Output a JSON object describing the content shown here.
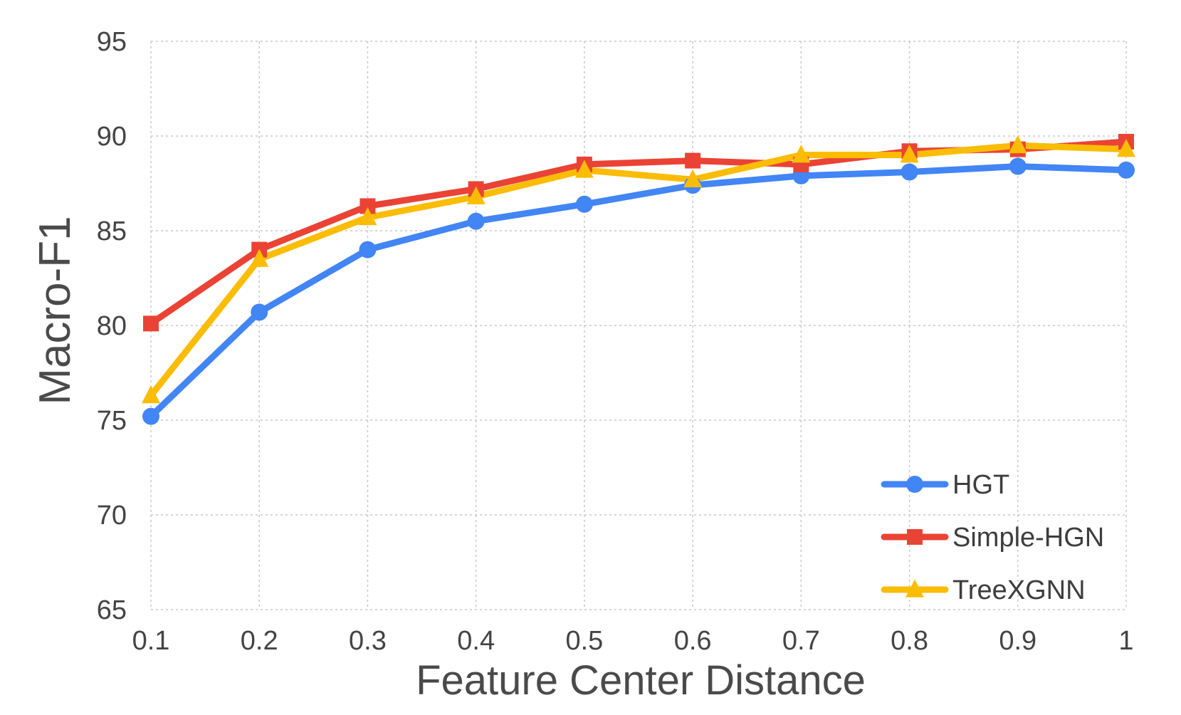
{
  "chart_data": {
    "type": "line",
    "xlabel": "Feature Center Distance",
    "ylabel": "Macro-F1",
    "x": [
      0.1,
      0.2,
      0.3,
      0.4,
      0.5,
      0.6,
      0.7,
      0.8,
      0.9,
      1.0
    ],
    "x_tick_labels": [
      "0.1",
      "0.2",
      "0.3",
      "0.4",
      "0.5",
      "0.6",
      "0.7",
      "0.8",
      "0.9",
      "1"
    ],
    "y_ticks": [
      65,
      70,
      75,
      80,
      85,
      90,
      95
    ],
    "y_tick_labels": [
      "65",
      "70",
      "75",
      "80",
      "85",
      "90",
      "95"
    ],
    "xlim": [
      0.1,
      1.0
    ],
    "ylim": [
      65,
      95
    ],
    "grid": true,
    "legend_position": "bottom-right",
    "series": [
      {
        "name": "HGT",
        "color": "#4285F4",
        "marker": "circle",
        "values": [
          75.2,
          80.7,
          84.0,
          85.5,
          86.4,
          87.4,
          87.9,
          88.1,
          88.4,
          88.2
        ]
      },
      {
        "name": "Simple-HGN",
        "color": "#EA4335",
        "marker": "square",
        "values": [
          80.1,
          84.0,
          86.3,
          87.2,
          88.5,
          88.7,
          88.5,
          89.2,
          89.3,
          89.7
        ]
      },
      {
        "name": "TreeXGNN",
        "color": "#FBBC04",
        "marker": "triangle",
        "values": [
          76.3,
          83.5,
          85.7,
          86.8,
          88.2,
          87.7,
          89.0,
          89.0,
          89.5,
          89.3
        ]
      }
    ]
  }
}
